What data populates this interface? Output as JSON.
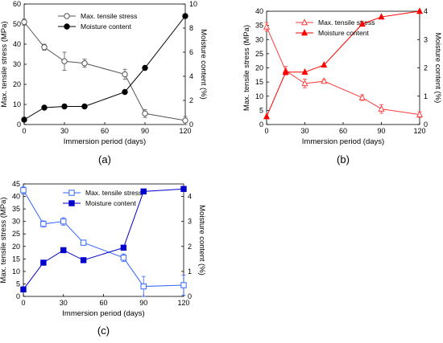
{
  "chart_data": [
    {
      "type": "line",
      "panel_label": "(a)",
      "x": [
        0,
        15,
        30,
        45,
        75,
        90,
        120
      ],
      "xlabel": "Immersion period (days)",
      "xlim": [
        0,
        120
      ],
      "xticks": [
        0,
        30,
        60,
        90,
        120
      ],
      "ylabel": "Max. tensile stress (MPa)",
      "ylim": [
        0,
        60
      ],
      "yticks": [
        0,
        10,
        20,
        30,
        40,
        50,
        60
      ],
      "y2label": "Moisture content (%)",
      "y2lim": [
        0,
        10
      ],
      "y2ticks": [
        0,
        2,
        4,
        6,
        8,
        10
      ],
      "legend_position": "top-center",
      "series": [
        {
          "name": "Max. tensile stress",
          "axis": "left",
          "marker": "open-circle",
          "color": "#555555",
          "values": [
            51,
            38.5,
            31.5,
            30.5,
            25,
            5.5,
            2
          ],
          "errors": [
            1.5,
            1.5,
            4.5,
            2,
            2.5,
            2,
            2
          ]
        },
        {
          "name": "Moisture content",
          "axis": "right",
          "marker": "filled-circle",
          "color": "#000000",
          "values": [
            0.4,
            1.4,
            1.5,
            1.5,
            2.7,
            4.7,
            9.0
          ]
        }
      ]
    },
    {
      "type": "line",
      "panel_label": "(b)",
      "x": [
        0,
        15,
        30,
        45,
        75,
        90,
        120
      ],
      "xlabel": "Immersion period (days)",
      "xlim": [
        0,
        120
      ],
      "xticks": [
        0,
        30,
        60,
        90,
        120
      ],
      "ylabel": "Max. tensile stress (MPa)",
      "ylim": [
        0,
        40
      ],
      "yticks": [
        0,
        5,
        10,
        15,
        20,
        25,
        30,
        35,
        40
      ],
      "y2label": "Moisture content (%)",
      "y2lim": [
        0,
        4
      ],
      "y2ticks": [
        0,
        1,
        2,
        3,
        4
      ],
      "legend_position": "top-center",
      "series": [
        {
          "name": "Max. tensile stress",
          "axis": "left",
          "marker": "open-triangle",
          "color": "#ff3b3b",
          "values": [
            34.5,
            19,
            14.5,
            15.3,
            9.5,
            5.5,
            3.5
          ],
          "errors": [
            1.5,
            1.5,
            1.5,
            0.6,
            1,
            1.5,
            1
          ]
        },
        {
          "name": "Moisture content",
          "axis": "right",
          "marker": "filled-triangle",
          "color": "#ff0000",
          "values": [
            0.28,
            1.85,
            1.85,
            2.1,
            3.55,
            3.8,
            4.0
          ]
        }
      ]
    },
    {
      "type": "line",
      "panel_label": "(c)",
      "x": [
        0,
        15,
        30,
        45,
        75,
        90,
        120
      ],
      "xlabel": "Immersion period (days)",
      "xlim": [
        0,
        120
      ],
      "xticks": [
        0,
        30,
        60,
        90,
        120
      ],
      "ylabel": "Max. tensile stress (MPa)",
      "ylim": [
        0,
        45
      ],
      "yticks": [
        0,
        5,
        10,
        15,
        20,
        25,
        30,
        35,
        40,
        45
      ],
      "y2label": "Moisture content (%)",
      "y2lim": [
        0,
        4.5
      ],
      "y2ticks": [
        0,
        1,
        2,
        3,
        4
      ],
      "legend_position": "top-center",
      "series": [
        {
          "name": "Max. tensile stress",
          "axis": "left",
          "marker": "open-square",
          "color": "#3366ff",
          "values": [
            42.5,
            29,
            30,
            21.5,
            15.5,
            4,
            4.5
          ],
          "errors": [
            1.5,
            1.2,
            1.5,
            1,
            1.5,
            4,
            4
          ]
        },
        {
          "name": "Moisture content",
          "axis": "right",
          "marker": "filled-square",
          "color": "#0000cc",
          "values": [
            0.28,
            1.35,
            1.85,
            1.45,
            1.95,
            4.2,
            4.3
          ]
        }
      ]
    }
  ]
}
